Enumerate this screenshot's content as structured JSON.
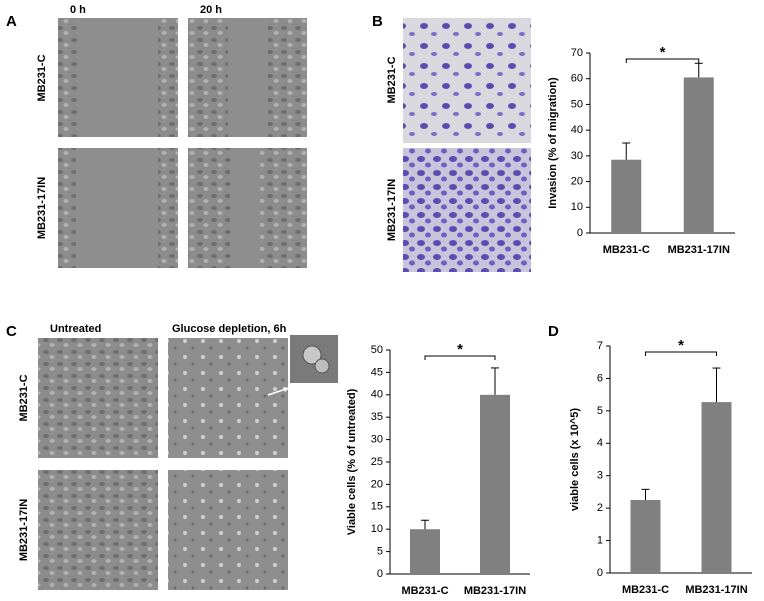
{
  "panels": {
    "a": {
      "letter": "A",
      "columns": [
        "0 h",
        "20 h"
      ],
      "rows": [
        "MB231-C",
        "MB231-17IN"
      ]
    },
    "b": {
      "letter": "B",
      "rows": [
        "MB231-C",
        "MB231-17IN"
      ]
    },
    "c": {
      "letter": "C",
      "columns": [
        "Untreated",
        "Glucose depletion, 6h"
      ],
      "rows": [
        "MB231-C",
        "MB231-17IN"
      ]
    },
    "d": {
      "letter": "D"
    }
  },
  "chart_data": [
    {
      "type": "bar",
      "ylabel": "Invasion (% of migration)",
      "categories": [
        "MB231-C",
        "MB231-17IN"
      ],
      "values": [
        28.5,
        60.5
      ],
      "errors": [
        6.5,
        5.5
      ],
      "color": "#808080",
      "ylim": [
        0,
        70
      ],
      "yticks": [
        0,
        10,
        20,
        30,
        40,
        50,
        60,
        70
      ],
      "annotation": "*"
    },
    {
      "type": "bar",
      "ylabel": "Viable cells (% of untreated)",
      "categories": [
        "MB231-C",
        "MB231-17IN"
      ],
      "values": [
        10,
        40
      ],
      "errors": [
        2,
        6
      ],
      "color": "#808080",
      "ylim": [
        0,
        50
      ],
      "yticks": [
        0,
        5,
        10,
        15,
        20,
        25,
        30,
        35,
        40,
        45,
        50
      ],
      "annotation": "*"
    },
    {
      "type": "bar",
      "ylabel": "viable cells (x 10^5)",
      "categories": [
        "MB231-C",
        "MB231-17IN"
      ],
      "values": [
        2.25,
        5.27
      ],
      "errors": [
        0.33,
        1.05
      ],
      "color": "#808080",
      "ylim": [
        0,
        7
      ],
      "yticks": [
        0,
        1,
        2,
        3,
        4,
        5,
        6,
        7
      ],
      "annotation": "*"
    }
  ]
}
